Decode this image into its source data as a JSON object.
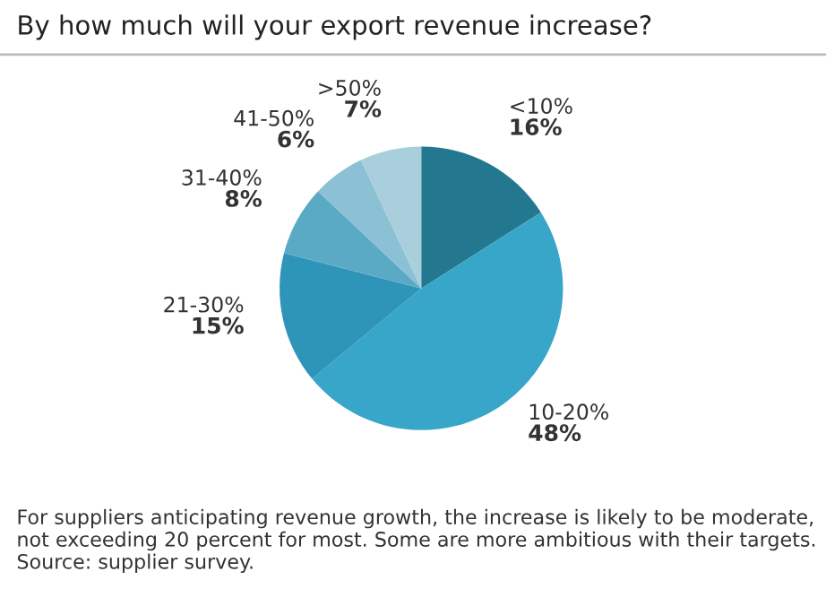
{
  "chart_data": {
    "type": "pie",
    "title": "By how much will your export revenue increase?",
    "categories": [
      "<10%",
      "10-20%",
      "21-30%",
      "31-40%",
      "41-50%",
      ">50%"
    ],
    "values": [
      16,
      48,
      15,
      8,
      6,
      7
    ],
    "value_labels": [
      "16%",
      "48%",
      "15%",
      "8%",
      "6%",
      "7%"
    ],
    "colors": [
      "#23778f",
      "#37a6c8",
      "#2f95b8",
      "#5aaac6",
      "#8cc0d4",
      "#aacfdc"
    ],
    "annotations": [
      "For suppliers anticipating revenue growth, the increase is likely to be moderate, not exceeding 20 percent for most. Some are more ambitious with their targets. Source: supplier survey."
    ]
  }
}
